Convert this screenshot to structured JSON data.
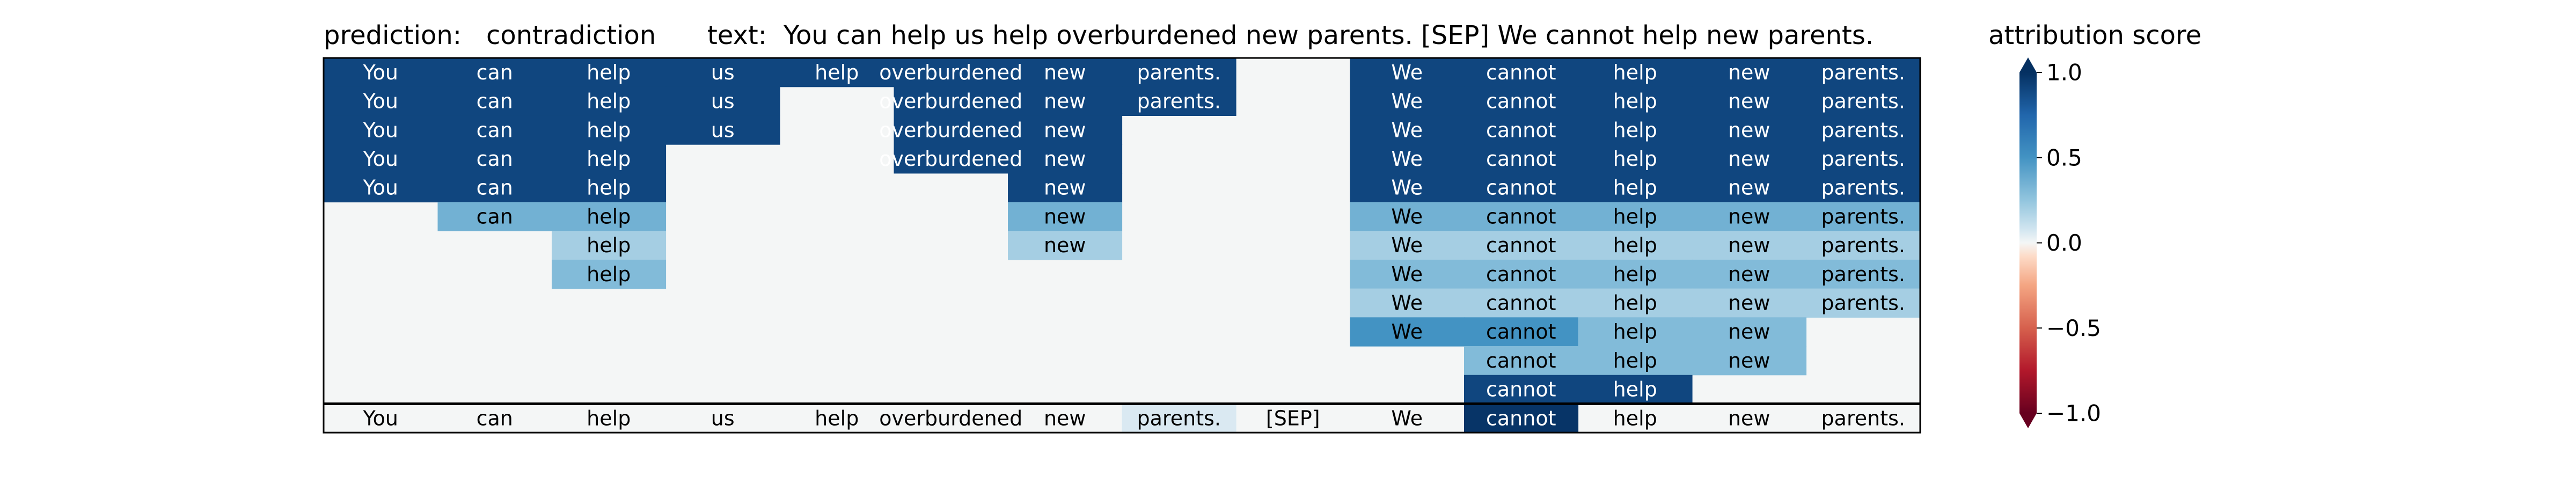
{
  "header": {
    "prediction_label": "prediction:",
    "prediction_value": "contradiction",
    "text_label": "text:",
    "text_value": "You can help us help overburdened new parents. [SEP] We cannot help new parents.",
    "score_label": "attribution score"
  },
  "chart_data": {
    "type": "heatmap",
    "columns": [
      "You",
      "can",
      "help",
      "us",
      "help",
      "overburdened",
      "new",
      "parents.",
      "[SEP]",
      "We",
      "cannot",
      "help",
      "new",
      "parents."
    ],
    "rows": [
      {
        "tokens": [
          "You",
          "can",
          "help",
          "us",
          "help",
          "overburdened",
          "new",
          "parents.",
          null,
          "We",
          "cannot",
          "help",
          "new",
          "parents."
        ],
        "values": [
          0.9,
          0.9,
          0.9,
          0.9,
          0.9,
          0.9,
          0.9,
          0.9,
          0,
          0.9,
          0.9,
          0.9,
          0.9,
          0.9
        ]
      },
      {
        "tokens": [
          "You",
          "can",
          "help",
          "us",
          null,
          "overburdened",
          "new",
          "parents.",
          null,
          "We",
          "cannot",
          "help",
          "new",
          "parents."
        ],
        "values": [
          0.9,
          0.9,
          0.9,
          0.9,
          0,
          0.9,
          0.9,
          0.9,
          0,
          0.9,
          0.9,
          0.9,
          0.9,
          0.9
        ]
      },
      {
        "tokens": [
          "You",
          "can",
          "help",
          "us",
          null,
          "overburdened",
          "new",
          null,
          null,
          "We",
          "cannot",
          "help",
          "new",
          "parents."
        ],
        "values": [
          0.9,
          0.9,
          0.9,
          0.9,
          0,
          0.9,
          0.9,
          0,
          0,
          0.9,
          0.9,
          0.9,
          0.9,
          0.9
        ]
      },
      {
        "tokens": [
          "You",
          "can",
          "help",
          null,
          null,
          "overburdened",
          "new",
          null,
          null,
          "We",
          "cannot",
          "help",
          "new",
          "parents."
        ],
        "values": [
          0.9,
          0.9,
          0.9,
          0,
          0,
          0.9,
          0.9,
          0,
          0,
          0.9,
          0.9,
          0.9,
          0.9,
          0.9
        ]
      },
      {
        "tokens": [
          "You",
          "can",
          "help",
          null,
          null,
          null,
          "new",
          null,
          null,
          "We",
          "cannot",
          "help",
          "new",
          "parents."
        ],
        "values": [
          0.9,
          0.9,
          0.9,
          0,
          0,
          0,
          0.9,
          0,
          0,
          0.9,
          0.9,
          0.9,
          0.9,
          0.9
        ]
      },
      {
        "tokens": [
          null,
          "can",
          "help",
          null,
          null,
          null,
          "new",
          null,
          null,
          "We",
          "cannot",
          "help",
          "new",
          "parents."
        ],
        "values": [
          0,
          0.35,
          0.35,
          0,
          0,
          0,
          0.35,
          0,
          0,
          0.35,
          0.35,
          0.35,
          0.35,
          0.35
        ]
      },
      {
        "tokens": [
          null,
          null,
          "help",
          null,
          null,
          null,
          "new",
          null,
          null,
          "We",
          "cannot",
          "help",
          "new",
          "parents."
        ],
        "values": [
          0,
          0,
          0.2,
          0,
          0,
          0,
          0.2,
          0,
          0,
          0.2,
          0.2,
          0.2,
          0.2,
          0.2
        ]
      },
      {
        "tokens": [
          null,
          null,
          "help",
          null,
          null,
          null,
          null,
          null,
          null,
          "We",
          "cannot",
          "help",
          "new",
          "parents."
        ],
        "values": [
          0,
          0,
          0.3,
          0,
          0,
          0,
          0,
          0,
          0,
          0.3,
          0.3,
          0.3,
          0.3,
          0.3
        ]
      },
      {
        "tokens": [
          null,
          null,
          null,
          null,
          null,
          null,
          null,
          null,
          null,
          "We",
          "cannot",
          "help",
          "new",
          "parents."
        ],
        "values": [
          0,
          0,
          0,
          0,
          0,
          0,
          0,
          0,
          0,
          0.2,
          0.2,
          0.2,
          0.2,
          0.2
        ]
      },
      {
        "tokens": [
          null,
          null,
          null,
          null,
          null,
          null,
          null,
          null,
          null,
          "We",
          "cannot",
          "help",
          "new",
          null
        ],
        "values": [
          0,
          0,
          0,
          0,
          0,
          0,
          0,
          0,
          0,
          0.5,
          0.5,
          0.3,
          0.3,
          0
        ]
      },
      {
        "tokens": [
          null,
          null,
          null,
          null,
          null,
          null,
          null,
          null,
          null,
          null,
          "cannot",
          "help",
          "new",
          null
        ],
        "values": [
          0,
          0,
          0,
          0,
          0,
          0,
          0,
          0,
          0,
          0,
          0.3,
          0.3,
          0.3,
          0
        ]
      },
      {
        "tokens": [
          null,
          null,
          null,
          null,
          null,
          null,
          null,
          null,
          null,
          null,
          "cannot",
          "help",
          null,
          null
        ],
        "values": [
          0,
          0,
          0,
          0,
          0,
          0,
          0,
          0,
          0,
          0,
          0.9,
          0.9,
          0,
          0
        ]
      }
    ],
    "bottom_row": {
      "tokens": [
        "You",
        "can",
        "help",
        "us",
        "help",
        "overburdened",
        "new",
        "parents.",
        "[SEP]",
        "We",
        "cannot",
        "help",
        "new",
        "parents."
      ],
      "values": [
        0,
        0,
        0,
        0,
        0,
        0,
        0,
        0.06,
        0,
        0,
        0.98,
        0,
        0,
        0
      ]
    },
    "colorbar": {
      "colormap": "RdBu",
      "range": [
        -1.0,
        1.0
      ],
      "ticks": [
        "1.0",
        "0.5",
        "0.0",
        "−0.5",
        "−1.0"
      ],
      "tick_values": [
        1.0,
        0.5,
        0.0,
        -0.5,
        -1.0
      ]
    }
  }
}
